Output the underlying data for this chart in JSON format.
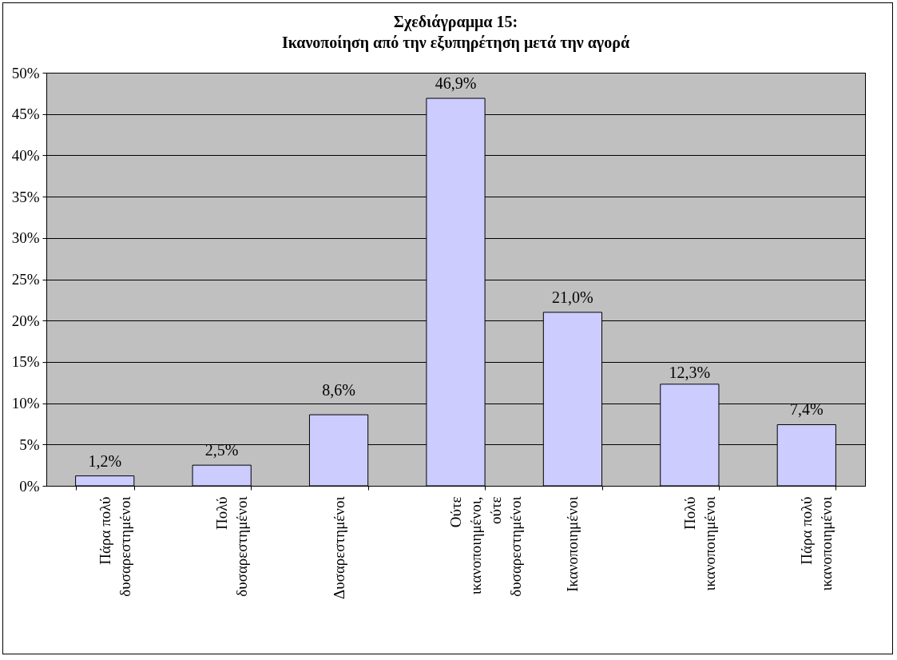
{
  "chart_data": {
    "type": "bar",
    "title": "Σχεδιάγραμμα 15:",
    "subtitle": "Ικανοποίηση από την εξυπηρέτηση μετά την αγορά",
    "categories": [
      "Πάρα πολύ δυσαρεστημένοι",
      "Πολύ δυσαρεστημένοι",
      "Δυσαρεστημένοι",
      "Ούτε ικανοποιημένοι, ούτε δυσαρεστημένοι",
      "Ικανοποιημένοι",
      "Πολύ ικανοποιημένοι",
      "Πάρα πολύ ικανοποιημένοι"
    ],
    "values": [
      1.2,
      2.5,
      8.6,
      46.9,
      21.0,
      12.3,
      7.4
    ],
    "value_labels": [
      "1,2%",
      "2,5%",
      "8,6%",
      "46,9%",
      "21,0%",
      "12,3%",
      "7,4%"
    ],
    "color": "#ccccff",
    "ylim": [
      0,
      50
    ],
    "yticks": [
      {
        "value": 0,
        "label": "0%"
      },
      {
        "value": 5,
        "label": "5%"
      },
      {
        "value": 10,
        "label": "10%"
      },
      {
        "value": 15,
        "label": "15%"
      },
      {
        "value": 20,
        "label": "20%"
      },
      {
        "value": 25,
        "label": "25%"
      },
      {
        "value": 30,
        "label": "30%"
      },
      {
        "value": 35,
        "label": "35%"
      },
      {
        "value": 40,
        "label": "40%"
      },
      {
        "value": 45,
        "label": "45%"
      },
      {
        "value": 50,
        "label": "50%"
      }
    ],
    "grid": "y"
  }
}
